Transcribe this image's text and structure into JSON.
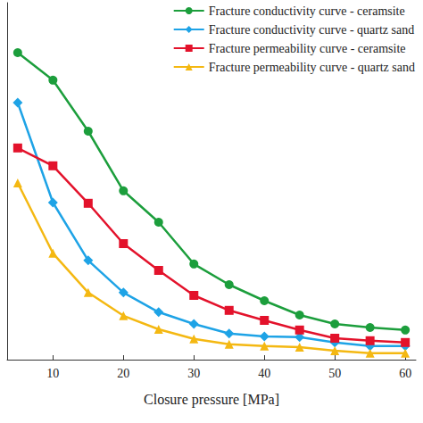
{
  "chart_data": {
    "type": "line",
    "xlabel": "Closure pressure [MPa]",
    "x": [
      5,
      10,
      15,
      20,
      25,
      30,
      35,
      40,
      45,
      50,
      55,
      60
    ],
    "xlim": [
      3.5,
      61.5
    ],
    "xticks": [
      10,
      20,
      30,
      40,
      50,
      60
    ],
    "ylim": [
      0,
      100
    ],
    "tick_labels": "x",
    "grid": false,
    "legend": "top-right",
    "series": [
      {
        "name": "Fracture conductivity curve - ceramsite",
        "color": "#1c9e3c",
        "marker": "circle",
        "values": [
          86,
          78.3,
          64,
          47.3,
          38.5,
          26.8,
          21,
          16.5,
          12.5,
          10,
          9,
          8.3
        ]
      },
      {
        "name": "Fracture conductivity curve - quartz sand",
        "color": "#1ea3e6",
        "marker": "diamond",
        "values": [
          72,
          44,
          27.8,
          18.8,
          13.3,
          10,
          7.3,
          6.5,
          6.3,
          4.8,
          3.8,
          3.8
        ]
      },
      {
        "name": "Fracture permeability curve - ceramsite",
        "color": "#e3122b",
        "marker": "square",
        "values": [
          59.3,
          54.3,
          43.8,
          32.5,
          25,
          18,
          13.8,
          11,
          8.3,
          6,
          5.3,
          4.8
        ]
      },
      {
        "name": "Fracture permeability curve - quartz sand",
        "color": "#f4b812",
        "marker": "triangle",
        "values": [
          49.5,
          29.8,
          18.8,
          12.3,
          8.5,
          5.8,
          4.3,
          3.8,
          3.5,
          2.5,
          1.8,
          1.8
        ]
      }
    ]
  }
}
